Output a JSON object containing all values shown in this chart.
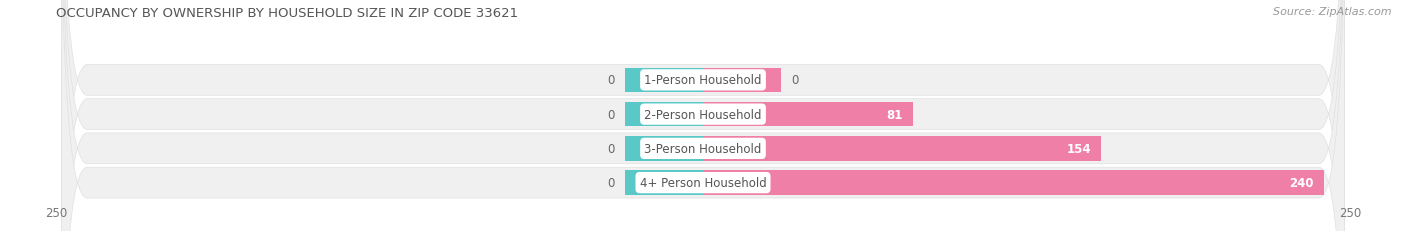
{
  "title": "OCCUPANCY BY OWNERSHIP BY HOUSEHOLD SIZE IN ZIP CODE 33621",
  "source": "Source: ZipAtlas.com",
  "categories": [
    "1-Person Household",
    "2-Person Household",
    "3-Person Household",
    "4+ Person Household"
  ],
  "owner_values": [
    0,
    0,
    0,
    0
  ],
  "renter_values": [
    0,
    81,
    154,
    240
  ],
  "owner_color": "#5bc8c8",
  "renter_color": "#f07fa8",
  "bar_bg_color": "#f0f0f0",
  "bar_bg_edge": "#e0e0e0",
  "xlim": 250,
  "owner_stub": 30,
  "renter_stub": 30,
  "bar_height": 0.72,
  "title_fontsize": 9.5,
  "source_fontsize": 8,
  "label_fontsize": 8.5,
  "value_fontsize": 8.5,
  "tick_fontsize": 8.5,
  "legend_fontsize": 8.5,
  "fig_bg_color": "#ffffff",
  "title_color": "#555555",
  "source_color": "#999999",
  "value_color_inside": "#ffffff",
  "value_color_outside": "#666666",
  "label_text_color": "#555555"
}
